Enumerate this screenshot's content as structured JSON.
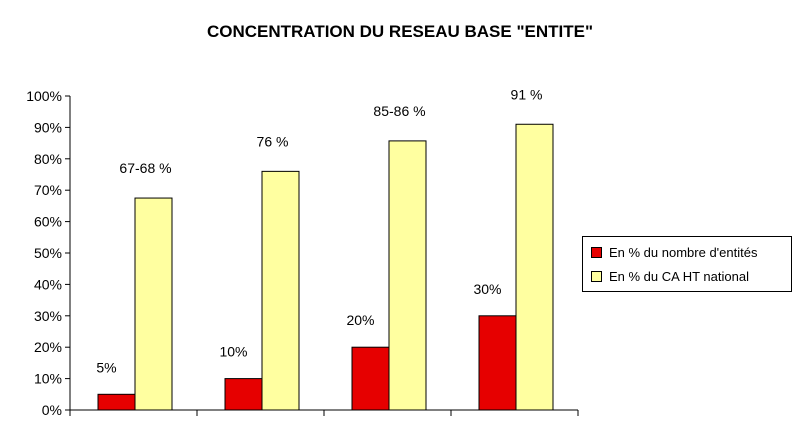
{
  "chart_data": {
    "type": "bar",
    "title": "CONCENTRATION DU RESEAU BASE \"ENTITE\"",
    "categories": [
      "",
      "",
      "",
      ""
    ],
    "series": [
      {
        "name": "En % du nombre d'entités",
        "color": "#e60000",
        "values": [
          5,
          10,
          20,
          30
        ],
        "labels": [
          "5%",
          "10%",
          "20%",
          "30%"
        ]
      },
      {
        "name": "En % du CA HT national",
        "color": "#ffffa0",
        "values": [
          67.5,
          76,
          85.7,
          91
        ],
        "labels": [
          "67-68 %",
          "76 %",
          "85-86 %",
          "91 %"
        ]
      }
    ],
    "ylim": [
      0,
      100
    ],
    "yticks": [
      0,
      10,
      20,
      30,
      40,
      50,
      60,
      70,
      80,
      90,
      100
    ],
    "ytick_labels": [
      "0%",
      "10%",
      "20%",
      "30%",
      "40%",
      "50%",
      "60%",
      "70%",
      "80%",
      "90%",
      "100%"
    ],
    "grid": false,
    "legend": "right"
  }
}
